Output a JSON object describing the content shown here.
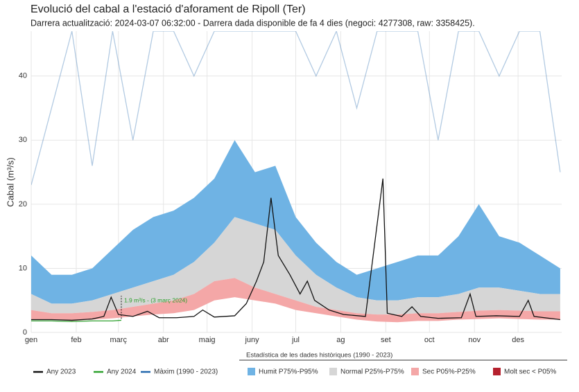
{
  "chart_data": {
    "type": "line",
    "title": "Evolució del cabal a l'estació d'aforament de Ripoll (Ter)",
    "subtitle": "Darrera actualització: 2024-03-07 06:32:00 - Darrera dada disponible de fa 4 dies (negoci: 4277308, raw: 3358425).",
    "y_label": "Cabal (m³/s)",
    "annotation": "1.9 m³/s - (3 març 2024)",
    "annotation_x": 62,
    "xlim": [
      0,
      365
    ],
    "xticks": [
      {
        "value": 0,
        "label": "gen"
      },
      {
        "value": 31,
        "label": "feb"
      },
      {
        "value": 60,
        "label": "març"
      },
      {
        "value": 91,
        "label": "abr"
      },
      {
        "value": 121,
        "label": "maig"
      },
      {
        "value": 152,
        "label": "juny"
      },
      {
        "value": 182,
        "label": "jul"
      },
      {
        "value": 213,
        "label": "ag"
      },
      {
        "value": 244,
        "label": "set"
      },
      {
        "value": 274,
        "label": "oct"
      },
      {
        "value": 305,
        "label": "nov"
      },
      {
        "value": 335,
        "label": "des"
      }
    ],
    "ylim": [
      0,
      47
    ],
    "yticks": [
      0,
      10,
      20,
      30,
      40
    ],
    "grid": true,
    "band_legend_title": "Estadística de les dades històriques (1990 - 2023)",
    "bands": {
      "x": [
        0,
        14,
        28,
        42,
        56,
        70,
        84,
        98,
        112,
        126,
        140,
        154,
        168,
        182,
        196,
        210,
        224,
        238,
        252,
        266,
        280,
        294,
        308,
        322,
        336,
        350,
        364
      ],
      "items": [
        {
          "name": "Humit P75%-P95%",
          "color": "#6fb3e4",
          "low": [
            6,
            4.5,
            4.5,
            5,
            6,
            7,
            8,
            9,
            11,
            14,
            18,
            17,
            16,
            12,
            9,
            7,
            5.5,
            5,
            5,
            5.5,
            5.5,
            6,
            7,
            7,
            6.5,
            6,
            6
          ],
          "high": [
            12,
            9,
            9,
            10,
            13,
            16,
            18,
            19,
            21,
            24,
            30,
            25,
            26,
            18,
            14,
            11,
            9,
            10,
            11,
            12,
            12,
            15,
            20,
            15,
            14,
            12,
            10
          ]
        },
        {
          "name": "Normal P25%-P75%",
          "color": "#d6d6d6",
          "low": [
            3.5,
            3,
            3,
            3.2,
            3.5,
            4,
            4.5,
            5,
            6,
            8,
            8.5,
            7,
            6,
            5,
            4,
            3.5,
            3,
            2.8,
            2.8,
            3,
            3,
            3.2,
            3.4,
            3.5,
            3.4,
            3.3,
            3.3
          ],
          "high": [
            6,
            4.5,
            4.5,
            5,
            6,
            7,
            8,
            9,
            11,
            14,
            18,
            17,
            16,
            12,
            9,
            7,
            5.5,
            5,
            5,
            5.5,
            5.5,
            6,
            7,
            7,
            6.5,
            6,
            6
          ]
        },
        {
          "name": "Sec P05%-P25%",
          "color": "#f4a7a7",
          "low": [
            2,
            2,
            1.8,
            2,
            2.2,
            2.5,
            2.8,
            3,
            3.5,
            5,
            5.5,
            5,
            4.5,
            3.5,
            3,
            2.5,
            2,
            1.7,
            1.6,
            1.8,
            1.8,
            2,
            2.1,
            2.2,
            2.1,
            2,
            2
          ],
          "high": [
            3.5,
            3,
            3,
            3.2,
            3.5,
            4,
            4.5,
            5,
            6,
            8,
            8.5,
            7,
            6,
            5,
            4,
            3.5,
            3,
            2.8,
            2.8,
            3,
            3,
            3.2,
            3.4,
            3.5,
            3.4,
            3.3,
            3.3
          ]
        },
        {
          "name": "Molt sec < P05%",
          "color": "#b5212e",
          "low": [],
          "high": []
        }
      ]
    },
    "series": [
      {
        "name": "Any 2023",
        "color": "#111111",
        "x": [
          0,
          14,
          28,
          42,
          50,
          55,
          60,
          70,
          80,
          88,
          100,
          112,
          118,
          126,
          140,
          148,
          155,
          160,
          165,
          170,
          178,
          185,
          190,
          195,
          205,
          215,
          230,
          242,
          245,
          255,
          262,
          268,
          280,
          296,
          302,
          306,
          320,
          336,
          342,
          346,
          364
        ],
        "values": [
          2,
          2,
          1.9,
          2.1,
          2.5,
          5.5,
          2.8,
          2.5,
          3.3,
          2.3,
          2.3,
          2.5,
          3.5,
          2.4,
          2.6,
          4.5,
          8,
          11,
          21,
          12,
          9,
          6,
          8,
          5,
          3.5,
          2.8,
          2.5,
          24,
          3,
          2.5,
          4,
          2.5,
          2.2,
          2.3,
          6,
          2.5,
          2.6,
          2.5,
          5,
          2.5,
          2
        ]
      },
      {
        "name": "Any 2024",
        "color": "#2ca02c",
        "x": [
          0,
          14,
          28,
          42,
          56,
          62
        ],
        "values": [
          1.8,
          1.8,
          1.7,
          1.8,
          1.8,
          1.9
        ]
      },
      {
        "name": "Màxim (1990 - 2023)",
        "color": "#2166ac",
        "x": [
          0,
          14,
          28,
          42,
          56,
          70,
          84,
          98,
          112,
          126,
          140,
          154,
          168,
          182,
          196,
          210,
          224,
          238,
          252,
          266,
          280,
          294,
          308,
          322,
          336,
          350,
          364
        ],
        "values": [
          23,
          35,
          47,
          26,
          47,
          30,
          47,
          47,
          40,
          47,
          47,
          47,
          47,
          47,
          40,
          47,
          35,
          47,
          47,
          47,
          30,
          47,
          47,
          40,
          47,
          47,
          25
        ]
      }
    ]
  }
}
